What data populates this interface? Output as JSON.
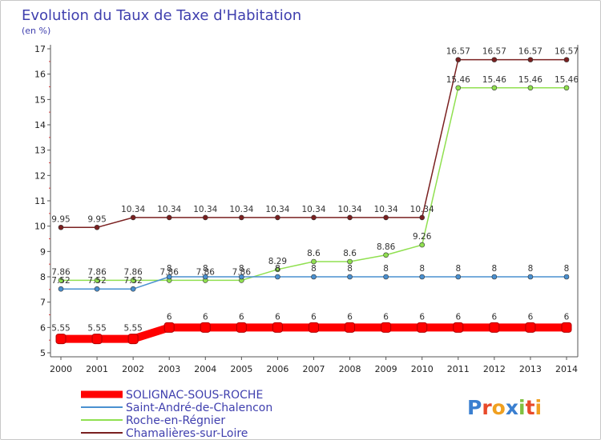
{
  "chart_data": {
    "type": "line",
    "title": "Evolution du Taux de Taxe d'Habitation",
    "subtitle": "(en %)",
    "xlabel": "",
    "ylabel": "",
    "x": [
      "2000",
      "2001",
      "2002",
      "2003",
      "2004",
      "2005",
      "2006",
      "2007",
      "2008",
      "2009",
      "2010",
      "2011",
      "2012",
      "2013",
      "2014"
    ],
    "ylim": [
      5,
      17
    ],
    "yticks": [
      "5",
      "6",
      "7",
      "8",
      "9",
      "10",
      "11",
      "12",
      "13",
      "14",
      "15",
      "16",
      "17"
    ],
    "grid": false,
    "legend_position": "bottom-left",
    "series": [
      {
        "name": "SOLIGNAC-SOUS-ROCHE",
        "color": "#ff0000",
        "values": [
          5.55,
          5.55,
          5.55,
          6,
          6,
          6,
          6,
          6,
          6,
          6,
          6,
          6,
          6,
          6,
          6
        ],
        "labels": [
          "5.55",
          "5.55",
          "5.55",
          "6",
          "6",
          "6",
          "6",
          "6",
          "6",
          "6",
          "6",
          "6",
          "6",
          "6",
          "6"
        ]
      },
      {
        "name": "Saint-André-de-Chalencon",
        "color": "#4a90d0",
        "values": [
          7.52,
          7.52,
          7.52,
          8,
          8,
          8,
          8,
          8,
          8,
          8,
          8,
          8,
          8,
          8,
          8
        ],
        "labels": [
          "7.52",
          "7.52",
          "7.52",
          "8",
          "8",
          "8",
          "8",
          "8",
          "8",
          "8",
          "8",
          "8",
          "8",
          "8",
          "8"
        ]
      },
      {
        "name": "Roche-en-Régnier",
        "color": "#90e050",
        "values": [
          7.86,
          7.86,
          7.86,
          7.86,
          7.86,
          7.86,
          8.29,
          8.6,
          8.6,
          8.86,
          9.26,
          15.46,
          15.46,
          15.46,
          15.46
        ],
        "labels": [
          "7.86",
          "7.86",
          "7.86",
          "7.86",
          "7.86",
          "7.86",
          "8.29",
          "8.6",
          "8.6",
          "8.86",
          "9.26",
          "15.46",
          "15.46",
          "15.46",
          "15.46"
        ]
      },
      {
        "name": "Chamalières-sur-Loire",
        "color": "#7a2020",
        "values": [
          9.95,
          9.95,
          10.34,
          10.34,
          10.34,
          10.34,
          10.34,
          10.34,
          10.34,
          10.34,
          10.34,
          16.57,
          16.57,
          16.57,
          16.57
        ],
        "labels": [
          "9.95",
          "9.95",
          "10.34",
          "10.34",
          "10.34",
          "10.34",
          "10.34",
          "10.34",
          "10.34",
          "10.34",
          "10.34",
          "16.57",
          "16.57",
          "16.57",
          "16.57"
        ]
      }
    ]
  },
  "logo": {
    "letters": [
      "P",
      "r",
      "o",
      "x",
      "i",
      "t",
      "i"
    ],
    "colors": [
      "#3a7fd0",
      "#e84a2a",
      "#f0a020",
      "#3a7fd0",
      "#80c040",
      "#e84a2a",
      "#f0a020"
    ]
  }
}
